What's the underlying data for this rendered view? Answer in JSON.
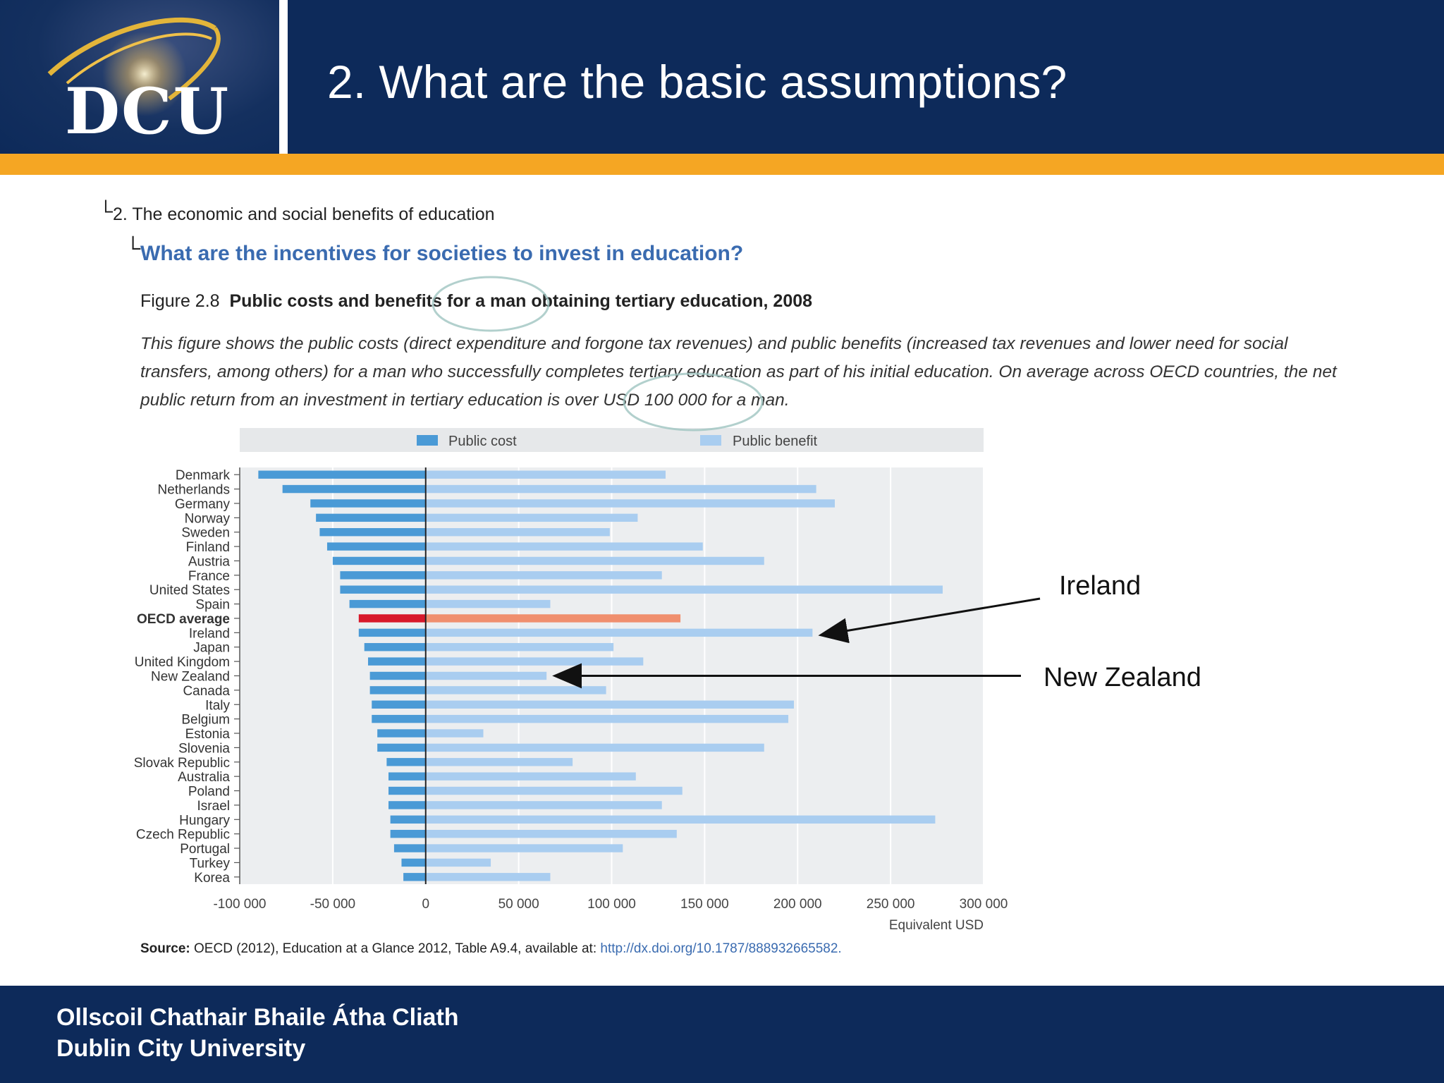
{
  "header": {
    "logo_text": "DCU",
    "title": "2. What are the basic assumptions?"
  },
  "footer": {
    "line1": "Ollscoil Chathair Bhaile Átha Cliath",
    "line2": "Dublin City University"
  },
  "breadcrumb": {
    "level1": "2. The economic and social benefits of education",
    "level2": "What are the incentives for societies to invest in education?"
  },
  "figure": {
    "number": "Figure 2.8",
    "title": "Public costs and benefits for a man obtaining tertiary education, 2008",
    "description": "This figure shows the public costs (direct expenditure and forgone tax revenues) and public benefits (increased tax revenues and lower need for social transfers, among others) for a man who successfully completes tertiary education as part of his initial education. On average across OECD countries, the net public return from an investment in tertiary education is over USD 100 000 for a man.",
    "source_label": "Source:",
    "source_text": "OECD (2012), Education at a Glance 2012, Table A9.4, available at:",
    "source_link": "http://dx.doi.org/10.1787/888932665582."
  },
  "annotations": {
    "ireland": "Ireland",
    "new_zealand": "New Zealand"
  },
  "colors": {
    "cost": "#4a9ad6",
    "benefit": "#a9cdf0",
    "oecd_cost": "#d7182a",
    "oecd_benefit": "#f08f6e",
    "header_bg": "#0d2a5a",
    "accent": "#f5a623"
  },
  "chart_data": {
    "type": "bar",
    "orientation": "horizontal",
    "xlabel": "Equivalent USD",
    "xlim": [
      -100000,
      300000
    ],
    "xticks": [
      -100000,
      -50000,
      0,
      50000,
      100000,
      150000,
      200000,
      250000,
      300000
    ],
    "xtick_labels": [
      "-100 000",
      "-50 000",
      "0",
      "50 000",
      "100 000",
      "150 000",
      "200 000",
      "250 000",
      "300 000"
    ],
    "grid": true,
    "legend_position": "top",
    "categories": [
      "Denmark",
      "Netherlands",
      "Germany",
      "Norway",
      "Sweden",
      "Finland",
      "Austria",
      "France",
      "United States",
      "Spain",
      "OECD average",
      "Ireland",
      "Japan",
      "United Kingdom",
      "New Zealand",
      "Canada",
      "Italy",
      "Belgium",
      "Estonia",
      "Slovenia",
      "Slovak Republic",
      "Australia",
      "Poland",
      "Israel",
      "Hungary",
      "Czech Republic",
      "Portugal",
      "Turkey",
      "Korea"
    ],
    "highlight_category": "OECD average",
    "series": [
      {
        "name": "Public cost",
        "values": [
          -90000,
          -77000,
          -62000,
          -59000,
          -57000,
          -53000,
          -50000,
          -46000,
          -46000,
          -41000,
          -36000,
          -36000,
          -33000,
          -31000,
          -30000,
          -30000,
          -29000,
          -29000,
          -26000,
          -26000,
          -21000,
          -20000,
          -20000,
          -20000,
          -19000,
          -19000,
          -17000,
          -13000,
          -12000
        ]
      },
      {
        "name": "Public benefit",
        "values": [
          129000,
          210000,
          220000,
          114000,
          99000,
          149000,
          182000,
          127000,
          278000,
          67000,
          137000,
          208000,
          101000,
          117000,
          65000,
          97000,
          198000,
          195000,
          31000,
          182000,
          79000,
          113000,
          138000,
          127000,
          274000,
          135000,
          106000,
          35000,
          67000
        ]
      }
    ]
  }
}
